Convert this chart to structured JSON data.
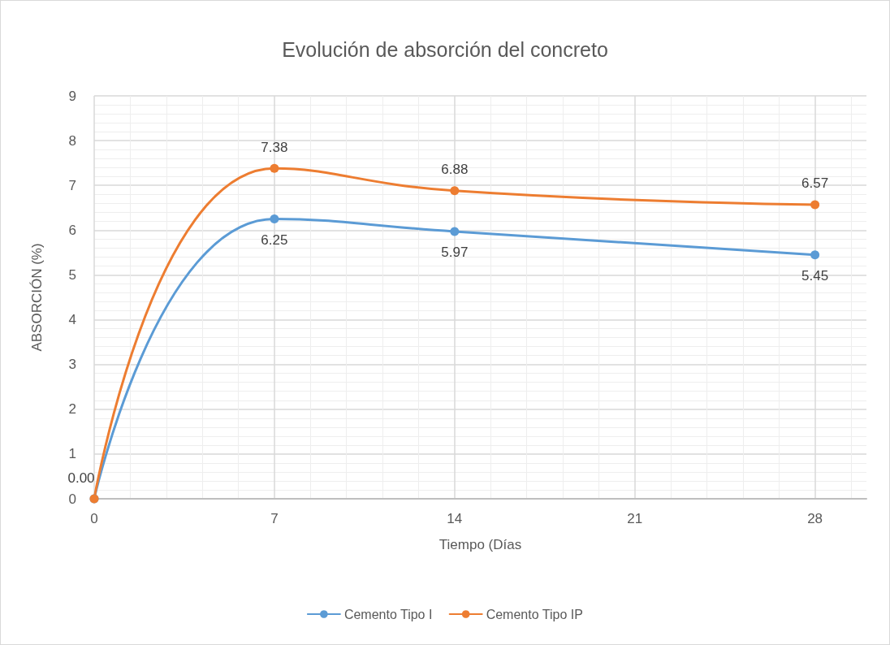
{
  "chart_data": {
    "type": "line",
    "title": "Evolución de absorción del concreto",
    "xlabel": "Tiempo (Días",
    "ylabel": "ABSORCIÓN (%)",
    "x": [
      0,
      7,
      14,
      28
    ],
    "series": [
      {
        "name": "Cemento Tipo I",
        "color": "#5b9bd5",
        "values": [
          0,
          6.25,
          5.97,
          5.45
        ],
        "value_labels": [
          "0.00",
          "6.25",
          "5.97",
          "5.45"
        ]
      },
      {
        "name": "Cemento Tipo IP",
        "color": "#ed7d31",
        "values": [
          0,
          7.38,
          6.88,
          6.57
        ],
        "value_labels": [
          null,
          "7.38",
          "6.88",
          "6.57"
        ]
      }
    ],
    "xlim": [
      0,
      30
    ],
    "xticks": [
      0,
      7,
      14,
      21,
      28
    ],
    "ylim": [
      0,
      9
    ],
    "yticks": [
      0,
      1,
      2,
      3,
      4,
      5,
      6,
      7,
      8,
      9
    ],
    "grid": true,
    "legend": "bottom",
    "marker": "circle",
    "line_style": "solid"
  }
}
